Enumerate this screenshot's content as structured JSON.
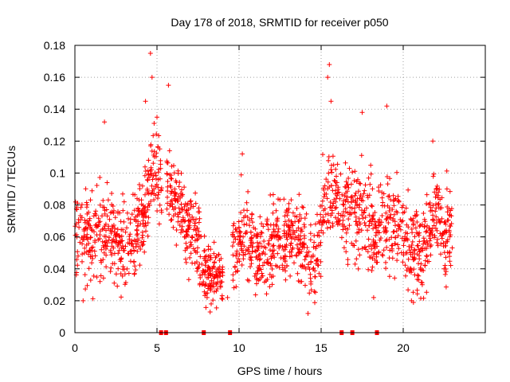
{
  "chart_data": {
    "type": "scatter",
    "title": "Day 178 of 2018, SRMTID for receiver p050",
    "xlabel": "GPS time / hours",
    "ylabel": "SRMTID / TECUs",
    "xlim": [
      0,
      25
    ],
    "ylim": [
      0,
      0.18
    ],
    "x_ticks": [
      0,
      5,
      10,
      15,
      20
    ],
    "y_ticks": [
      0,
      0.02,
      0.04,
      0.06,
      0.08,
      0.1,
      0.12,
      0.14,
      0.16,
      0.18
    ],
    "x_tick_labels": [
      "0",
      "5",
      "10",
      "15",
      "20"
    ],
    "y_tick_labels": [
      "0",
      "0.02",
      "0.04",
      "0.06",
      "0.08",
      "0.1",
      "0.12",
      "0.14",
      "0.16",
      "0.18"
    ],
    "grid": true,
    "marker": "+",
    "marker_color": "#ff0000",
    "zero_marks_x": [
      5.25,
      5.55,
      7.85,
      9.45,
      16.25,
      16.9,
      18.4
    ],
    "series": [
      {
        "name": "SRMTID",
        "segments": [
          {
            "x_start": 0.0,
            "x_end": 5.3,
            "points": 420,
            "profile": [
              [
                0.0,
                0.058
              ],
              [
                0.5,
                0.062
              ],
              [
                1.0,
                0.058
              ],
              [
                1.5,
                0.068
              ],
              [
                2.0,
                0.06
              ],
              [
                2.5,
                0.058
              ],
              [
                3.0,
                0.05
              ],
              [
                3.5,
                0.058
              ],
              [
                4.0,
                0.068
              ],
              [
                4.4,
                0.085
              ],
              [
                4.7,
                0.105
              ],
              [
                5.0,
                0.1
              ],
              [
                5.3,
                0.09
              ]
            ],
            "spread": 0.018
          },
          {
            "x_start": 5.6,
            "x_end": 7.6,
            "points": 170,
            "profile": [
              [
                5.6,
                0.095
              ],
              [
                6.0,
                0.085
              ],
              [
                6.5,
                0.075
              ],
              [
                7.0,
                0.065
              ],
              [
                7.6,
                0.055
              ]
            ],
            "spread": 0.016
          },
          {
            "x_start": 7.6,
            "x_end": 9.0,
            "points": 130,
            "profile": [
              [
                7.6,
                0.04
              ],
              [
                8.0,
                0.036
              ],
              [
                8.5,
                0.038
              ],
              [
                9.0,
                0.034
              ]
            ],
            "spread": 0.012
          },
          {
            "x_start": 9.6,
            "x_end": 15.0,
            "points": 430,
            "profile": [
              [
                9.6,
                0.05
              ],
              [
                10.0,
                0.062
              ],
              [
                10.5,
                0.06
              ],
              [
                11.0,
                0.05
              ],
              [
                11.5,
                0.046
              ],
              [
                12.0,
                0.055
              ],
              [
                12.5,
                0.058
              ],
              [
                13.0,
                0.062
              ],
              [
                13.5,
                0.06
              ],
              [
                14.0,
                0.055
              ],
              [
                14.5,
                0.04
              ],
              [
                15.0,
                0.06
              ]
            ],
            "spread": 0.016
          },
          {
            "x_start": 15.0,
            "x_end": 23.0,
            "points": 620,
            "profile": [
              [
                15.0,
                0.075
              ],
              [
                15.5,
                0.09
              ],
              [
                16.0,
                0.085
              ],
              [
                16.5,
                0.075
              ],
              [
                17.0,
                0.078
              ],
              [
                17.5,
                0.072
              ],
              [
                18.0,
                0.07
              ],
              [
                18.5,
                0.06
              ],
              [
                19.0,
                0.068
              ],
              [
                19.5,
                0.072
              ],
              [
                20.0,
                0.06
              ],
              [
                20.5,
                0.052
              ],
              [
                21.0,
                0.048
              ],
              [
                21.5,
                0.058
              ],
              [
                22.0,
                0.078
              ],
              [
                22.5,
                0.062
              ],
              [
                23.0,
                0.065
              ]
            ],
            "spread": 0.018
          }
        ],
        "notable_points": [
          [
            4.6,
            0.175
          ],
          [
            15.5,
            0.168
          ],
          [
            4.7,
            0.16
          ],
          [
            15.4,
            0.16
          ],
          [
            5.7,
            0.155
          ],
          [
            1.8,
            0.132
          ],
          [
            15.6,
            0.145
          ],
          [
            19.0,
            0.142
          ],
          [
            17.5,
            0.138
          ],
          [
            4.3,
            0.145
          ],
          [
            5.0,
            0.135
          ],
          [
            21.8,
            0.12
          ],
          [
            10.2,
            0.112
          ],
          [
            0.5,
            0.02
          ],
          [
            14.2,
            0.012
          ],
          [
            8.3,
            0.018
          ],
          [
            9.3,
            0.022
          ],
          [
            18.2,
            0.022
          ],
          [
            20.5,
            0.02
          ]
        ]
      }
    ]
  }
}
